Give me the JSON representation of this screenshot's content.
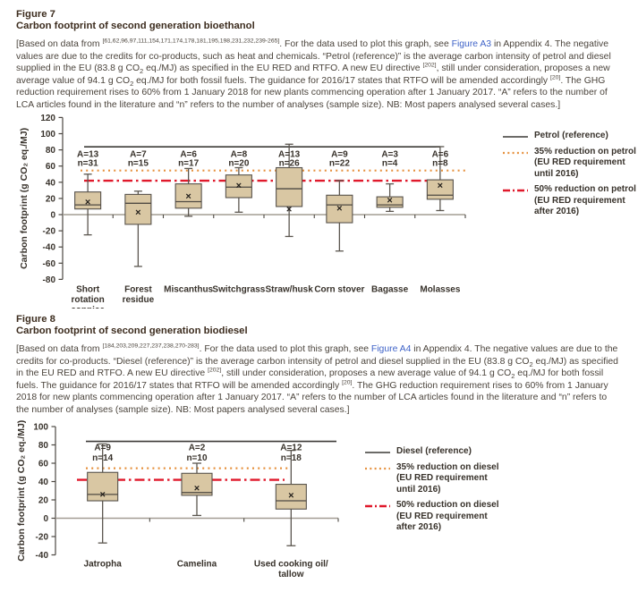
{
  "colors": {
    "heading": "#3c2c1e",
    "body_text": "#4b443c",
    "chart_text": "#37312a",
    "link": "#3f63c8",
    "box_fill": "#d9c7a3",
    "box_border": "#57524b",
    "median": "#4f4a43",
    "whisker": "#5b564f",
    "zero_line": "#a39d94",
    "axis": "#4c4842",
    "ref_solid": "#3c3a37",
    "ref_dotted": "#e6913e",
    "ref_dashdot": "#e0192b"
  },
  "figure7": {
    "label": "Figure 7",
    "title": "Carbon footprint of second generation bioethanol",
    "note_segments": [
      {
        "t": "text",
        "v": "[Based on data from "
      },
      {
        "t": "sup",
        "v": "[61,62,96,97,111,154,171,174,178,181,195,198,231,232,239-265]"
      },
      {
        "t": "text",
        "v": ". For the data used to plot this graph, see "
      },
      {
        "t": "link",
        "v": "Figure A3"
      },
      {
        "t": "text",
        "v": " in Appendix 4. The negative values are due to the credits for co-products, such as heat and chemicals. “Petrol (reference)” is the average carbon intensity of petrol and diesel supplied in the EU (83.8 g CO"
      },
      {
        "t": "sub",
        "v": "2"
      },
      {
        "t": "text",
        "v": " eq./MJ) as specified in the EU RED and RTFO. A new EU directive "
      },
      {
        "t": "sup",
        "v": "[202]"
      },
      {
        "t": "text",
        "v": ", still under consideration, proposes a new average value of 94.1 g CO"
      },
      {
        "t": "sub",
        "v": "2"
      },
      {
        "t": "text",
        "v": " eq./MJ for both fossil fuels. The guidance for 2016/17 states that RTFO will be amended accordingly "
      },
      {
        "t": "sup",
        "v": "[20]"
      },
      {
        "t": "text",
        "v": ". The GHG reduction requirement rises to 60% from 1 January 2018 for new plants commencing operation after 1 January 2017. “A” refers to the number of LCA articles found in the literature and “n” refers to the number of analyses (sample size). NB: Most papers analysed several cases.]"
      }
    ]
  },
  "figure8": {
    "label": "Figure 8",
    "title": "Carbon footprint of second generation biodiesel",
    "note_segments": [
      {
        "t": "text",
        "v": "[Based on data from "
      },
      {
        "t": "sup",
        "v": "[184,203,209,227,237,238,270-283]"
      },
      {
        "t": "text",
        "v": ". For the data used to plot this graph, see "
      },
      {
        "t": "link",
        "v": "Figure A4"
      },
      {
        "t": "text",
        "v": " in Appendix 4. The negative values are due to the credits for co-products. “Diesel (reference)” is the average carbon intensity of petrol and diesel supplied in the EU (83.8 g CO"
      },
      {
        "t": "sub",
        "v": "2"
      },
      {
        "t": "text",
        "v": " eq./MJ) as specified in the EU RED and RTFO. A new EU directive "
      },
      {
        "t": "sup",
        "v": "[202]"
      },
      {
        "t": "text",
        "v": ", still under consideration, proposes a new average value of 94.1 g CO"
      },
      {
        "t": "sub",
        "v": "2"
      },
      {
        "t": "text",
        "v": " eq./MJ for both fossil fuels. The guidance for 2016/17 states that RTFO will be amended accordingly "
      },
      {
        "t": "sup",
        "v": "[20]"
      },
      {
        "t": "text",
        "v": ". The GHG reduction requirement rises to 60% from 1 January 2018 for new plants commencing operation after 1 January 2017. “A” refers to the number of LCA articles found in the literature and “n” refers to the number of analyses (sample size). NB: Most papers analysed several cases.]"
      }
    ]
  },
  "chart_data": [
    {
      "type": "box",
      "title": "Carbon footprint of second generation bioethanol",
      "ylabel": "Carbon footprint (g CO₂ eq./MJ)",
      "ylim": [
        -80,
        120
      ],
      "ytick_step": 20,
      "yticks": [
        120,
        100,
        80,
        60,
        40,
        20,
        0,
        -20,
        -40,
        -60,
        -80
      ],
      "grid": false,
      "legend_position": "right",
      "categories": [
        "Short rotation coppice",
        "Forest residue",
        "Miscanthus",
        "Switchgrass",
        "Straw/husk",
        "Corn stover",
        "Bagasse",
        "Molasses"
      ],
      "tick_labels": [
        "Short\nrotation\ncoppice",
        "Forest\nresidue",
        "Miscanthus",
        "Switchgrass",
        "Straw/husk",
        "Corn stover",
        "Bagasse",
        "Molasses"
      ],
      "boxes": [
        {
          "category": "Short rotation coppice",
          "A": 13,
          "n": 31,
          "whisker_low": -25,
          "q1": 7,
          "median": 12,
          "q3": 28,
          "whisker_high": 50,
          "mean": 16
        },
        {
          "category": "Forest residue",
          "A": 7,
          "n": 15,
          "whisker_low": -64,
          "q1": -12,
          "median": 14,
          "q3": 25,
          "whisker_high": 29,
          "mean": 3
        },
        {
          "category": "Miscanthus",
          "A": 6,
          "n": 17,
          "whisker_low": -2,
          "q1": 8,
          "median": 16,
          "q3": 38,
          "whisker_high": 57,
          "mean": 23
        },
        {
          "category": "Switchgrass",
          "A": 8,
          "n": 20,
          "whisker_low": 3,
          "q1": 21,
          "median": 34,
          "q3": 49,
          "whisker_high": 58,
          "mean": 36
        },
        {
          "category": "Straw/husk",
          "A": 13,
          "n": 26,
          "whisker_low": -27,
          "q1": 10,
          "median": 32,
          "q3": 58,
          "whisker_high": 87,
          "mean": 7
        },
        {
          "category": "Corn stover",
          "A": 9,
          "n": 22,
          "whisker_low": -45,
          "q1": -10,
          "median": 12,
          "q3": 24,
          "whisker_high": 42,
          "mean": 8
        },
        {
          "category": "Bagasse",
          "A": 3,
          "n": 4,
          "whisker_low": 4,
          "q1": 9,
          "median": 12,
          "q3": 22,
          "whisker_high": 38,
          "mean": 18
        },
        {
          "category": "Molasses",
          "A": 6,
          "n": 8,
          "whisker_low": 5,
          "q1": 19,
          "median": 24,
          "q3": 43,
          "whisker_high": 84,
          "mean": 36
        }
      ],
      "reference_lines": [
        {
          "label": "Petrol (reference)",
          "value": 83.8,
          "style": "solid"
        },
        {
          "label": "35% reduction on petrol\n(EU RED requirement\nuntil 2016)",
          "value": 54.5,
          "style": "dotted"
        },
        {
          "label": "50% reduction on petrol\n(EU RED requirement\nafter 2016)",
          "value": 41.9,
          "style": "dashdot"
        }
      ]
    },
    {
      "type": "box",
      "title": "Carbon footprint of second generation biodiesel",
      "ylabel": "Carbon footprint (g CO₂ eq./MJ)",
      "ylim": [
        -40,
        100
      ],
      "ytick_step": 20,
      "yticks": [
        100,
        80,
        60,
        40,
        20,
        0,
        -20,
        -40
      ],
      "grid": false,
      "legend_position": "right",
      "categories": [
        "Jatropha",
        "Camelina",
        "Used cooking oil/tallow"
      ],
      "tick_labels": [
        "Jatropha",
        "Camelina",
        "Used cooking oil/\ntallow"
      ],
      "boxes": [
        {
          "category": "Jatropha",
          "A": 9,
          "n": 14,
          "whisker_low": -27,
          "q1": 19,
          "median": 26,
          "q3": 50,
          "whisker_high": 81,
          "mean": 26
        },
        {
          "category": "Camelina",
          "A": 2,
          "n": 10,
          "whisker_low": 3,
          "q1": 25,
          "median": 28,
          "q3": 49,
          "whisker_high": 60,
          "mean": 33
        },
        {
          "category": "Used cooking oil/tallow",
          "A": 12,
          "n": 18,
          "whisker_low": -30,
          "q1": 10,
          "median": 19,
          "q3": 37,
          "whisker_high": 74,
          "mean": 25
        }
      ],
      "reference_lines": [
        {
          "label": "Diesel (reference)",
          "value": 83.8,
          "style": "solid"
        },
        {
          "label": "35% reduction on diesel\n(EU RED requirement\nuntil 2016)",
          "value": 54.5,
          "style": "dotted"
        },
        {
          "label": "50% reduction on diesel\n(EU RED requirement\nafter 2016)",
          "value": 41.9,
          "style": "dashdot"
        }
      ]
    }
  ]
}
